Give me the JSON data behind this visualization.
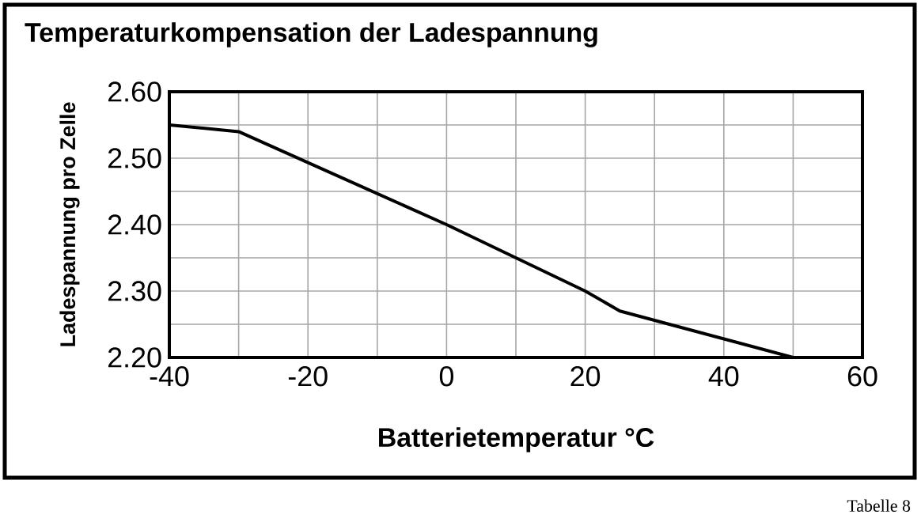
{
  "chart_data": {
    "type": "line",
    "title": "Temperaturkompensation der Ladespannung",
    "xlabel": "Batterietemperatur °C",
    "ylabel": "Ladespannung pro Zelle",
    "annotations": [
      "Tabelle 8"
    ],
    "x": [
      -40,
      -30,
      0,
      20,
      25,
      50
    ],
    "series": [
      {
        "color": "#000000",
        "values": [
          2.55,
          2.54,
          2.4,
          2.3,
          2.27,
          2.2
        ]
      }
    ],
    "xlim": [
      -40,
      60
    ],
    "xticks": [
      -40,
      {
        "value": -30,
        "label": null
      },
      -20,
      {
        "value": -10,
        "label": null
      },
      0,
      {
        "value": 10,
        "label": null
      },
      20,
      {
        "value": 30,
        "label": null
      },
      40,
      {
        "value": 50,
        "label": null
      },
      60
    ],
    "ylim": [
      2.2,
      2.6
    ],
    "yticks": [
      {
        "value": 2.2,
        "label": "2.20"
      },
      {
        "value": 2.25,
        "label": null
      },
      {
        "value": 2.3,
        "label": "2.30"
      },
      {
        "value": 2.35,
        "label": null
      },
      {
        "value": 2.4,
        "label": "2.40"
      },
      {
        "value": 2.45,
        "label": null
      },
      {
        "value": 2.5,
        "label": "2.50"
      },
      {
        "value": 2.55,
        "label": null
      },
      {
        "value": 2.6,
        "label": "2.60"
      }
    ],
    "grid": true
  }
}
